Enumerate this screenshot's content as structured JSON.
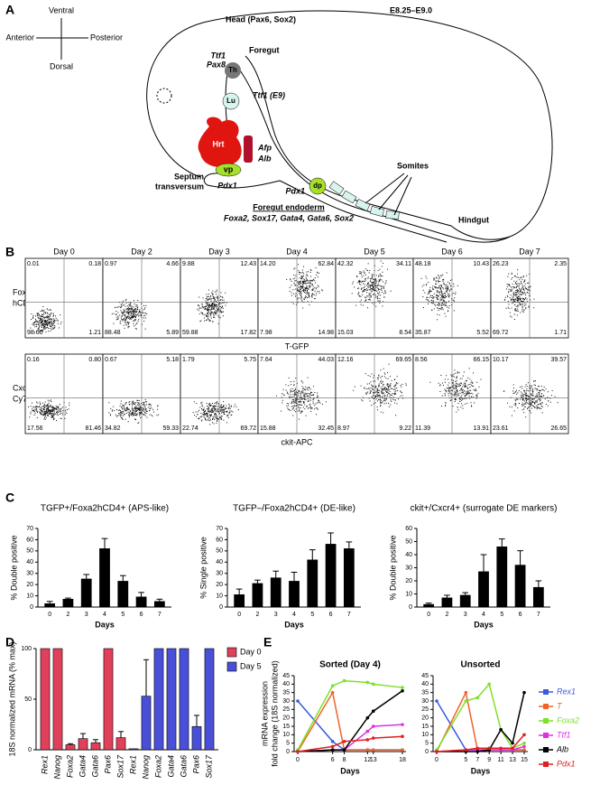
{
  "panel_labels": [
    "A",
    "B",
    "C",
    "D",
    "E"
  ],
  "diagram": {
    "stage": "E8.25–E9.0",
    "axes": {
      "ventral": "Ventral",
      "dorsal": "Dorsal",
      "anterior": "Anterior",
      "posterior": "Posterior"
    },
    "head": "Head (Pax6, Sox2)",
    "ttf1": "Ttf1",
    "pax8": "Pax8",
    "th": "Th",
    "foregut": "Foregut",
    "lu": "Lu",
    "ttf1_e9": "Ttf1 (E9)",
    "hrt": "Hrt",
    "afp": "Afp",
    "alb": "Alb",
    "septum": [
      "Septum",
      "transversum"
    ],
    "vp": "vp",
    "pdx1_vp": "Pdx1",
    "dp": "dp",
    "pdx1_dp": "Pdx1",
    "somites": "Somites",
    "hindgut": "Hindgut",
    "foregut_endoderm": "Foregut endoderm",
    "foregut_genes": "Foxa2, Sox17, Gata4, Gata6, Sox2"
  },
  "flow": {
    "days": [
      "Day 0",
      "Day 2",
      "Day 3",
      "Day 4",
      "Day 5",
      "Day 6",
      "Day 7"
    ],
    "rows": [
      {
        "ylabel": [
          "Foxa2-",
          "hCD4-PE"
        ],
        "xlabel": "T-GFP",
        "quadrants": [
          [
            "0.01",
            "0.18",
            "98.60",
            "1.21"
          ],
          [
            "0.97",
            "4.66",
            "88.48",
            "5.89"
          ],
          [
            "9.88",
            "12.43",
            "59.88",
            "17.82"
          ],
          [
            "14.20",
            "62.84",
            "7.98",
            "14.98"
          ],
          [
            "42.32",
            "34.11",
            "15.03",
            "8.54"
          ],
          [
            "48.18",
            "10.43",
            "35.87",
            "5.52"
          ],
          [
            "26.23",
            "2.35",
            "69.72",
            "1.71"
          ]
        ]
      },
      {
        "ylabel": [
          "Cxcr4-",
          "Cy7APC"
        ],
        "xlabel": "ckit-APC",
        "quadrants": [
          [
            "0.16",
            "0.80",
            "17.56",
            "81.46"
          ],
          [
            "0.67",
            "5.18",
            "34.82",
            "59.33"
          ],
          [
            "1.79",
            "5.75",
            "22.74",
            "69.72"
          ],
          [
            "7.64",
            "44.03",
            "15.88",
            "32.45"
          ],
          [
            "12.16",
            "69.65",
            "8.97",
            "9.22"
          ],
          [
            "8.56",
            "66.15",
            "11.39",
            "13.91"
          ],
          [
            "10.17",
            "39.57",
            "23.61",
            "26.65"
          ]
        ]
      }
    ]
  },
  "chart_data": [
    {
      "type": "bar",
      "title": "TGFP+/Foxa2hCD4+ (APS-like)",
      "xlabel": "Days",
      "ylabel": "% Double positive",
      "categories": [
        "0",
        "2",
        "3",
        "4",
        "5",
        "6",
        "7"
      ],
      "values": [
        3,
        7,
        25,
        52,
        23,
        9,
        5
      ],
      "errors": [
        2,
        1,
        4,
        9,
        5,
        4,
        2
      ],
      "color": "#000000",
      "ylim": [
        0,
        70
      ],
      "yticks": [
        0,
        10,
        20,
        30,
        40,
        50,
        60,
        70
      ]
    },
    {
      "type": "bar",
      "title": "TGFP–/Foxa2hCD4+ (DE-like)",
      "xlabel": "Days",
      "ylabel": "% Single positive",
      "categories": [
        "0",
        "2",
        "3",
        "4",
        "5",
        "6",
        "7"
      ],
      "values": [
        11,
        21,
        26,
        23,
        42,
        56,
        52
      ],
      "errors": [
        5,
        3,
        6,
        8,
        9,
        10,
        6
      ],
      "color": "#000000",
      "ylim": [
        0,
        70
      ],
      "yticks": [
        0,
        10,
        20,
        30,
        40,
        50,
        60,
        70
      ]
    },
    {
      "type": "bar",
      "title": "ckit+/Cxcr4+ (surrogate DE markers)",
      "xlabel": "Days",
      "ylabel": "% Double positive",
      "categories": [
        "0",
        "2",
        "3",
        "4",
        "5",
        "6",
        "7"
      ],
      "values": [
        2,
        7,
        9,
        27,
        46,
        32,
        15
      ],
      "errors": [
        1,
        2,
        2,
        13,
        6,
        11,
        5
      ],
      "color": "#000000",
      "ylim": [
        0,
        60
      ],
      "yticks": [
        0,
        10,
        20,
        30,
        40,
        50,
        60
      ]
    },
    {
      "type": "bar",
      "ylabel": "18S normalized mRNA (% max)",
      "categories": [
        "Rex1",
        "Nanog",
        "Foxa2",
        "Gata4",
        "Gata6",
        "Pax6",
        "Sox17",
        "Rex1",
        "Nanog",
        "Foxa2",
        "Gata4",
        "Gata6",
        "Pax6",
        "Sox17"
      ],
      "series": [
        {
          "name": "Day 0",
          "color": "#e0405a",
          "values": [
            100,
            100,
            5,
            11,
            7,
            100,
            12,
            null,
            null,
            null,
            null,
            null,
            null,
            null
          ],
          "errors": [
            0,
            0,
            1,
            5,
            3,
            0,
            6,
            null,
            null,
            null,
            null,
            null,
            null,
            null
          ]
        },
        {
          "name": "Day 5",
          "color": "#4a4fd8",
          "values": [
            null,
            null,
            null,
            null,
            null,
            null,
            null,
            1,
            53,
            100,
            100,
            100,
            23,
            100
          ],
          "errors": [
            null,
            null,
            null,
            null,
            null,
            null,
            null,
            0,
            36,
            0,
            0,
            0,
            11,
            0
          ]
        }
      ],
      "ylim": [
        0,
        100
      ],
      "yticks": [
        0,
        50,
        100
      ],
      "legend": "top-right"
    },
    {
      "type": "line",
      "title": "Sorted (Day 4)",
      "xlabel": "Days",
      "ylabel": [
        "mRNA expression",
        "fold change (18S normalized)"
      ],
      "x": [
        0,
        6,
        8,
        12,
        13,
        18
      ],
      "xlim": [
        0,
        18
      ],
      "xticks": [
        0,
        6,
        8,
        12,
        13,
        18
      ],
      "ylim": [
        0,
        45
      ],
      "yticks": [
        0,
        5,
        10,
        15,
        20,
        25,
        30,
        35,
        40,
        45
      ],
      "series": [
        {
          "name": "Rex1",
          "color": "#3b5bdb",
          "values": [
            30,
            6,
            1,
            1,
            1,
            1
          ]
        },
        {
          "name": "T",
          "color": "#f0642a",
          "values": [
            0,
            35,
            1,
            1,
            1,
            1
          ]
        },
        {
          "name": "Foxa2",
          "color": "#7ee02a",
          "values": [
            1,
            39,
            42,
            41,
            40,
            38
          ]
        },
        {
          "name": "Ttf1",
          "color": "#e030e0",
          "values": [
            0,
            1,
            1,
            12,
            15,
            16
          ]
        },
        {
          "name": "Alb",
          "color": "#000000",
          "values": [
            0,
            1,
            1,
            20,
            24,
            36
          ]
        },
        {
          "name": "Pdx1",
          "color": "#e02020",
          "values": [
            0,
            3,
            6,
            7,
            8,
            9
          ]
        }
      ]
    },
    {
      "type": "line",
      "title": "Unsorted",
      "xlabel": "Days",
      "x": [
        0,
        5,
        7,
        9,
        11,
        13,
        15
      ],
      "xlim": [
        0,
        15
      ],
      "xticks": [
        0,
        5,
        7,
        9,
        11,
        13,
        15
      ],
      "ylim": [
        0,
        45
      ],
      "yticks": [
        0,
        5,
        10,
        15,
        20,
        25,
        30,
        35,
        40,
        45
      ],
      "legend": "right",
      "series": [
        {
          "name": "Rex1",
          "color": "#3b5bdb",
          "values": [
            30,
            1,
            1,
            1,
            1,
            1,
            1
          ]
        },
        {
          "name": "T",
          "color": "#f0642a",
          "values": [
            0,
            35,
            1,
            1,
            1,
            1,
            1
          ]
        },
        {
          "name": "Foxa2",
          "color": "#7ee02a",
          "values": [
            1,
            30,
            32,
            40,
            13,
            2,
            5
          ]
        },
        {
          "name": "Ttf1",
          "color": "#e030e0",
          "values": [
            0,
            1,
            1,
            1,
            1,
            1,
            3
          ]
        },
        {
          "name": "Alb",
          "color": "#000000",
          "values": [
            0,
            0,
            0,
            1,
            13,
            5,
            35
          ]
        },
        {
          "name": "Pdx1",
          "color": "#e02020",
          "values": [
            0,
            1,
            2,
            2,
            2,
            2,
            10
          ]
        }
      ]
    }
  ]
}
